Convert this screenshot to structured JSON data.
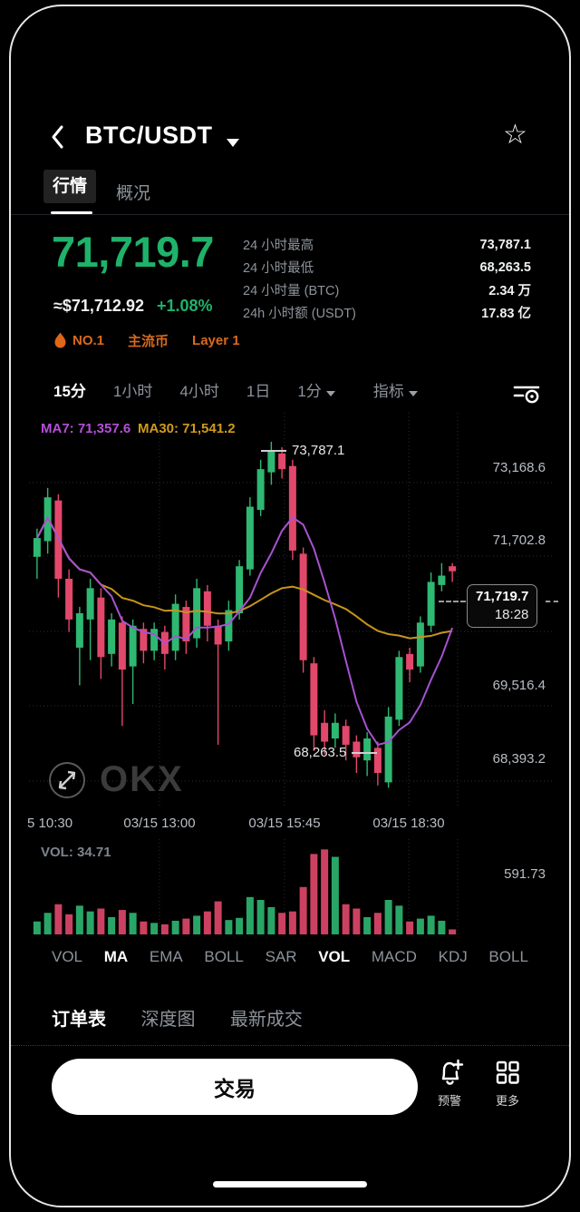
{
  "header": {
    "title": "BTC/USDT"
  },
  "tabs": {
    "market": "行情",
    "overview": "概况"
  },
  "price": {
    "last": "71,719.7",
    "fiat": "≈$71,712.92",
    "change": "+1.08%"
  },
  "badges": {
    "rank": "NO.1",
    "tag1": "主流币",
    "tag2": "Layer 1"
  },
  "stats": [
    {
      "label": "24 小时最高",
      "value": "73,787.1"
    },
    {
      "label": "24 小时最低",
      "value": "68,263.5"
    },
    {
      "label": "24 小时量 (BTC)",
      "value": "2.34 万"
    },
    {
      "label": "24h 小时额 (USDT)",
      "value": "17.83 亿"
    }
  ],
  "timeframes": {
    "t1": "15分",
    "t2": "1小时",
    "t3": "4小时",
    "t4": "1日",
    "dropdown": "1分",
    "indicator": "指标"
  },
  "chart": {
    "ma7_label": "MA7: 71,357.6",
    "ma30_label": "MA30: 71,541.2",
    "high_annotation": "73,787.1",
    "low_annotation": "68,263.5",
    "y_labels": [
      "73,168.6",
      "71,702.8",
      "69,516.4",
      "68,393.2"
    ],
    "x_labels": [
      "5 10:30",
      "03/15 13:00",
      "03/15 15:45",
      "03/15 18:30"
    ],
    "price_tag": {
      "price": "71,719.7",
      "time": "18:28"
    },
    "watermark": "OKX"
  },
  "volume_pane": {
    "label": "VOL: 34.71",
    "axis_max": "591.73"
  },
  "indicator_tabs": [
    {
      "label": "VOL"
    },
    {
      "label": "MA"
    },
    {
      "label": "EMA"
    },
    {
      "label": "BOLL"
    },
    {
      "label": "SAR"
    },
    {
      "label": "VOL"
    },
    {
      "label": "MACD"
    },
    {
      "label": "KDJ"
    },
    {
      "label": "BOLL"
    }
  ],
  "bottom_tabs": [
    {
      "label": "订单表"
    },
    {
      "label": "深度图"
    },
    {
      "label": "最新成交"
    }
  ],
  "actions": {
    "trade": "交易",
    "alert": "预警",
    "more": "更多"
  },
  "chart_data": {
    "type": "candlestick",
    "title": "BTC/USDT 15分 K线",
    "ylim": [
      67950,
      74250
    ],
    "vol_max": 600,
    "colors": {
      "up": "#2eb872",
      "down": "#e2486b",
      "ma7": "#a653cf",
      "ma30": "#c8941a",
      "grid": "#2c2d3a"
    },
    "last_price": 71719.7,
    "high_24h": 73787.1,
    "low_24h": 68263.5,
    "candles_ohlc": [
      [
        71950,
        72400,
        71600,
        72250
      ],
      [
        72200,
        73050,
        72000,
        72900
      ],
      [
        72850,
        72950,
        71300,
        71600
      ],
      [
        71600,
        71750,
        70750,
        70950
      ],
      [
        70500,
        71150,
        69900,
        71050
      ],
      [
        70950,
        71600,
        70300,
        71450
      ],
      [
        71300,
        71450,
        70000,
        70350
      ],
      [
        70400,
        71050,
        70200,
        70950
      ],
      [
        70900,
        71000,
        69250,
        70150
      ],
      [
        70200,
        70950,
        69600,
        70850
      ],
      [
        70800,
        70900,
        70250,
        70450
      ],
      [
        70450,
        70900,
        70300,
        70800
      ],
      [
        70750,
        70850,
        70150,
        70400
      ],
      [
        70450,
        71350,
        70300,
        71200
      ],
      [
        71150,
        71250,
        70400,
        70600
      ],
      [
        70650,
        71600,
        70500,
        71450
      ],
      [
        71400,
        71500,
        70600,
        70850
      ],
      [
        70850,
        70950,
        68950,
        70550
      ],
      [
        70600,
        71250,
        70450,
        71100
      ],
      [
        71050,
        71900,
        70950,
        71800
      ],
      [
        71750,
        72900,
        71650,
        72750
      ],
      [
        72700,
        73500,
        72600,
        73350
      ],
      [
        73300,
        73787.1,
        73100,
        73650
      ],
      [
        73600,
        73700,
        73200,
        73350
      ],
      [
        73400,
        73500,
        71900,
        72050
      ],
      [
        72000,
        72100,
        70100,
        70300
      ],
      [
        70250,
        70350,
        68850,
        69100
      ],
      [
        69300,
        69500,
        68800,
        69000
      ],
      [
        69050,
        69450,
        68900,
        69300
      ],
      [
        69250,
        69350,
        68700,
        68950
      ],
      [
        69000,
        69100,
        68500,
        68750
      ],
      [
        68700,
        69150,
        68450,
        69050
      ],
      [
        68900,
        69000,
        68300,
        68500
      ],
      [
        68350,
        69550,
        68263.5,
        69400
      ],
      [
        69350,
        70450,
        69250,
        70350
      ],
      [
        70400,
        70500,
        69950,
        70150
      ],
      [
        70200,
        71000,
        70100,
        70900
      ],
      [
        70850,
        71700,
        70750,
        71550
      ],
      [
        71500,
        71850,
        71400,
        71650
      ],
      [
        71800,
        71850,
        71550,
        71719.7
      ]
    ],
    "volumes": [
      90,
      150,
      210,
      140,
      200,
      160,
      180,
      120,
      170,
      150,
      90,
      80,
      70,
      95,
      110,
      130,
      160,
      230,
      100,
      115,
      260,
      240,
      190,
      150,
      160,
      330,
      560,
      591.73,
      540,
      210,
      180,
      120,
      150,
      240,
      200,
      90,
      110,
      130,
      95,
      34.71
    ]
  }
}
